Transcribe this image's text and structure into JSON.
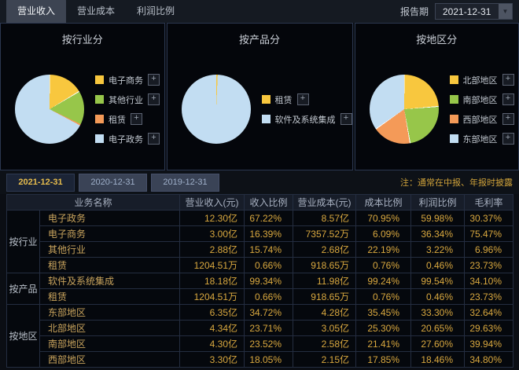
{
  "header": {
    "tabs": [
      {
        "label": "营业收入",
        "active": true
      },
      {
        "label": "营业成本",
        "active": false
      },
      {
        "label": "利润比例",
        "active": false
      }
    ],
    "report_period_label": "报告期",
    "report_period_value": "2021-12-31"
  },
  "colors": {
    "gold_text": "#d9a83f",
    "active_period_text": "#e7bd4d",
    "pie_yellow": "#f8c73e",
    "pie_green": "#97c64a",
    "pie_orange": "#f49a58",
    "pie_blue": "#c2ddf2"
  },
  "chart_data": [
    {
      "type": "pie",
      "title": "按行业分",
      "legend_position": "right",
      "slices": [
        {
          "label": "电子商务",
          "value": 16.39,
          "color": "#f8c73e"
        },
        {
          "label": "其他行业",
          "value": 15.74,
          "color": "#97c64a"
        },
        {
          "label": "租赁",
          "value": 0.66,
          "color": "#f49a58"
        },
        {
          "label": "电子政务",
          "value": 67.22,
          "color": "#c2ddf2"
        }
      ]
    },
    {
      "type": "pie",
      "title": "按产品分",
      "legend_position": "right",
      "slices": [
        {
          "label": "租赁",
          "value": 0.66,
          "color": "#f8c73e"
        },
        {
          "label": "软件及系统集成",
          "value": 99.34,
          "color": "#c2ddf2"
        }
      ]
    },
    {
      "type": "pie",
      "title": "按地区分",
      "legend_position": "right",
      "slices": [
        {
          "label": "北部地区",
          "value": 23.71,
          "color": "#f8c73e"
        },
        {
          "label": "南部地区",
          "value": 23.52,
          "color": "#97c64a"
        },
        {
          "label": "西部地区",
          "value": 18.05,
          "color": "#f49a58"
        },
        {
          "label": "东部地区",
          "value": 34.72,
          "color": "#c2ddf2"
        }
      ]
    }
  ],
  "period_tabs": {
    "items": [
      "2021-12-31",
      "2020-12-31",
      "2019-12-31"
    ],
    "active_index": 0,
    "note": "注：通常在中报、年报时披露"
  },
  "table": {
    "headers": [
      "业务名称",
      "营业收入(元)",
      "收入比例",
      "营业成本(元)",
      "成本比例",
      "利润比例",
      "毛利率"
    ],
    "groups": [
      {
        "label": "按行业",
        "rows": [
          {
            "name": "电子政务",
            "values": [
              "12.30亿",
              "67.22%",
              "8.57亿",
              "70.95%",
              "59.98%",
              "30.37%"
            ]
          },
          {
            "name": "电子商务",
            "values": [
              "3.00亿",
              "16.39%",
              "7357.52万",
              "6.09%",
              "36.34%",
              "75.47%"
            ]
          },
          {
            "name": "其他行业",
            "values": [
              "2.88亿",
              "15.74%",
              "2.68亿",
              "22.19%",
              "3.22%",
              "6.96%"
            ]
          },
          {
            "name": "租赁",
            "values": [
              "1204.51万",
              "0.66%",
              "918.65万",
              "0.76%",
              "0.46%",
              "23.73%"
            ]
          }
        ]
      },
      {
        "label": "按产品",
        "rows": [
          {
            "name": "软件及系统集成",
            "values": [
              "18.18亿",
              "99.34%",
              "11.98亿",
              "99.24%",
              "99.54%",
              "34.10%"
            ]
          },
          {
            "name": "租赁",
            "values": [
              "1204.51万",
              "0.66%",
              "918.65万",
              "0.76%",
              "0.46%",
              "23.73%"
            ]
          }
        ]
      },
      {
        "label": "按地区",
        "rows": [
          {
            "name": "东部地区",
            "values": [
              "6.35亿",
              "34.72%",
              "4.28亿",
              "35.45%",
              "33.30%",
              "32.64%"
            ]
          },
          {
            "name": "北部地区",
            "values": [
              "4.34亿",
              "23.71%",
              "3.05亿",
              "25.30%",
              "20.65%",
              "29.63%"
            ]
          },
          {
            "name": "南部地区",
            "values": [
              "4.30亿",
              "23.52%",
              "2.58亿",
              "21.41%",
              "27.60%",
              "39.94%"
            ]
          },
          {
            "name": "西部地区",
            "values": [
              "3.30亿",
              "18.05%",
              "2.15亿",
              "17.85%",
              "18.46%",
              "34.80%"
            ]
          }
        ]
      }
    ]
  }
}
